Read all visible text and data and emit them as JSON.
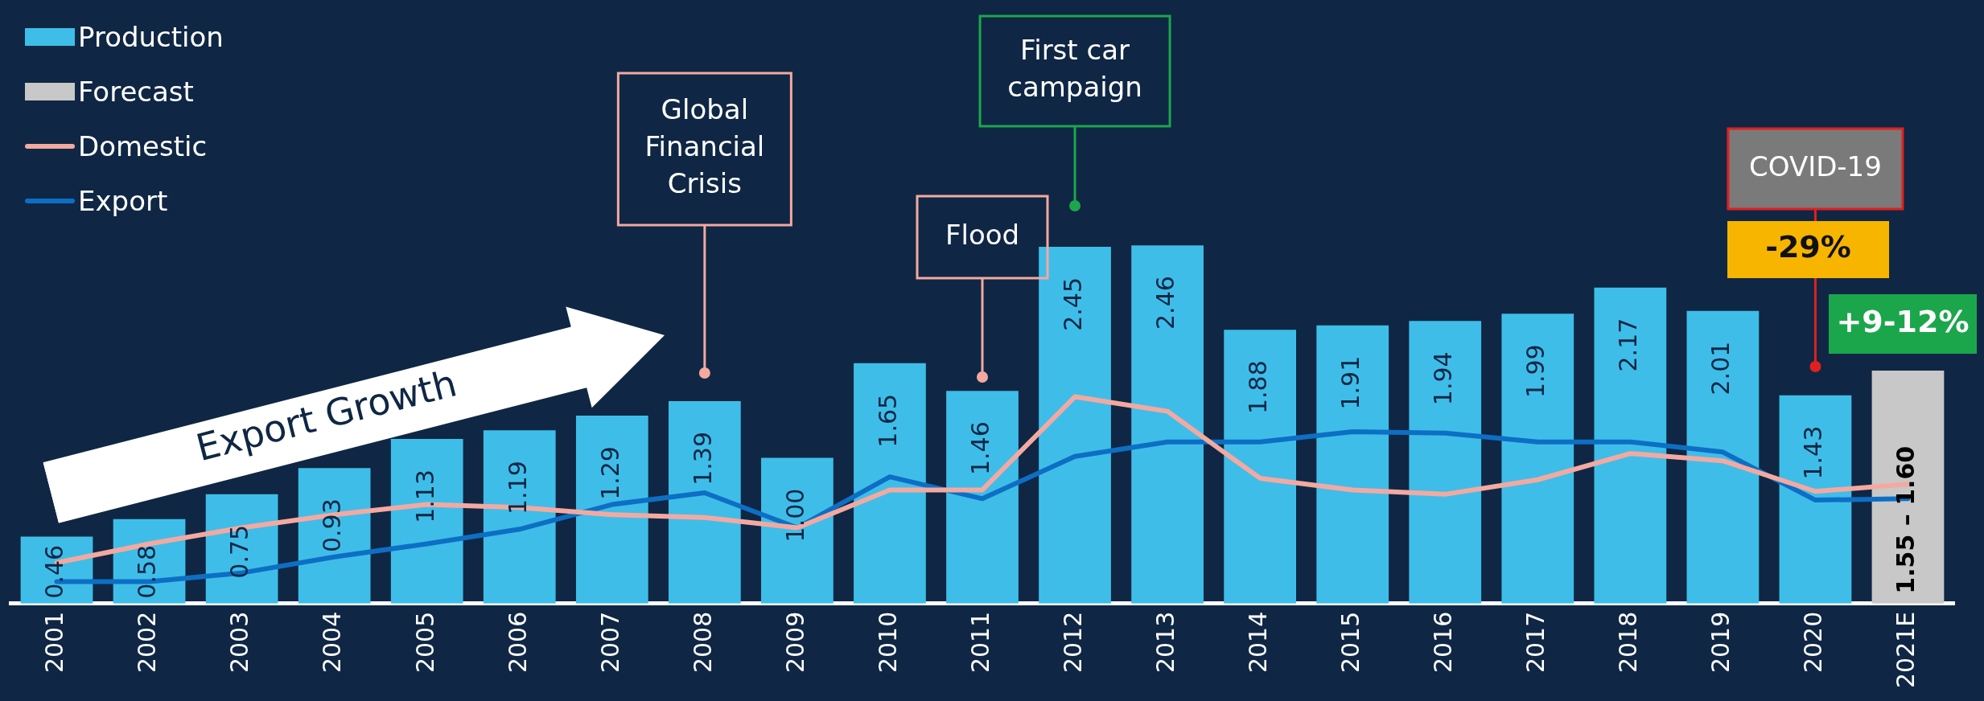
{
  "chart_data": {
    "type": "bar",
    "categories": [
      "2001",
      "2002",
      "2003",
      "2004",
      "2005",
      "2006",
      "2007",
      "2008",
      "2009",
      "2010",
      "2011",
      "2012",
      "2013",
      "2014",
      "2015",
      "2016",
      "2017",
      "2018",
      "2019",
      "2020",
      "2021E"
    ],
    "series": [
      {
        "name": "Production",
        "type": "bar",
        "color": "#3fbde9",
        "values": [
          0.46,
          0.58,
          0.75,
          0.93,
          1.13,
          1.19,
          1.29,
          1.39,
          1.0,
          1.65,
          1.46,
          2.45,
          2.46,
          1.88,
          1.91,
          1.94,
          1.99,
          2.17,
          2.01,
          1.43,
          null
        ],
        "value_labels": [
          "0.46",
          "0.58",
          "0.75",
          "0.93",
          "1.13",
          "1.19",
          "1.29",
          "1.39",
          "1.00",
          "1.65",
          "1.46",
          "2.45",
          "2.46",
          "1.88",
          "1.91",
          "1.94",
          "1.99",
          "2.17",
          "2.01",
          "1.43",
          null
        ]
      },
      {
        "name": "Forecast",
        "type": "bar",
        "color": "#c8c8c8",
        "values": [
          null,
          null,
          null,
          null,
          null,
          null,
          null,
          null,
          null,
          null,
          null,
          null,
          null,
          null,
          null,
          null,
          null,
          null,
          null,
          null,
          1.6
        ]
      },
      {
        "name": "Domestic",
        "type": "line",
        "color": "#f4a9a0",
        "values": [
          0.28,
          0.41,
          0.52,
          0.61,
          0.68,
          0.66,
          0.61,
          0.59,
          0.52,
          0.78,
          0.78,
          1.42,
          1.32,
          0.86,
          0.78,
          0.75,
          0.85,
          1.03,
          0.98,
          0.77,
          0.82
        ]
      },
      {
        "name": "Export",
        "type": "line",
        "color": "#0d6fc4",
        "values": [
          0.15,
          0.15,
          0.21,
          0.32,
          0.41,
          0.51,
          0.68,
          0.76,
          0.52,
          0.87,
          0.72,
          1.01,
          1.11,
          1.11,
          1.18,
          1.17,
          1.11,
          1.11,
          1.04,
          0.71,
          0.72
        ]
      }
    ],
    "tick_labels": "x",
    "grid": false,
    "legend": "top left",
    "marker": "none",
    "annotations": [
      "Export Growth",
      "Global Financial Crisis",
      "Flood",
      "First car campaign",
      "COVID-19",
      "-29%",
      "+9-12%",
      "1.55 – 1.60"
    ]
  }
}
